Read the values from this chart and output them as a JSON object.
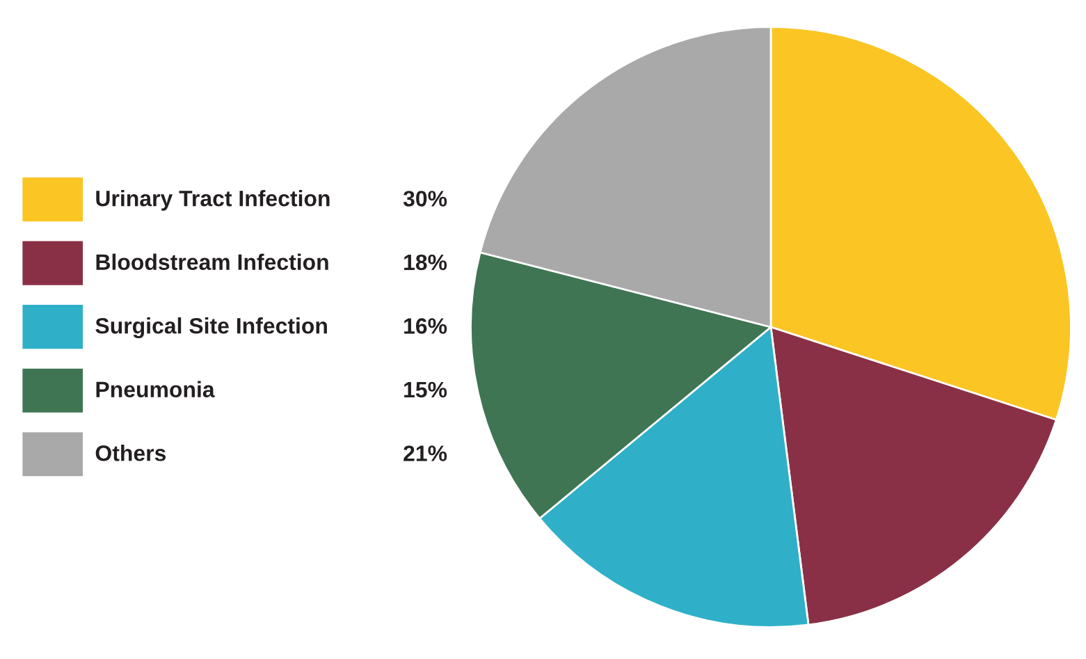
{
  "chart_data": {
    "type": "pie",
    "categories": [
      "Urinary Tract Infection",
      "Bloodstream Infection",
      "Surgical Site Infection",
      "Pneumonia",
      "Others"
    ],
    "values": [
      30,
      18,
      16,
      15,
      21
    ],
    "colors": [
      "#fbc524",
      "#8a3046",
      "#2fb0c8",
      "#3f7553",
      "#a9a9a9"
    ],
    "value_labels": [
      "30%",
      "18%",
      "16%",
      "15%",
      "21%"
    ],
    "legend": "left"
  }
}
